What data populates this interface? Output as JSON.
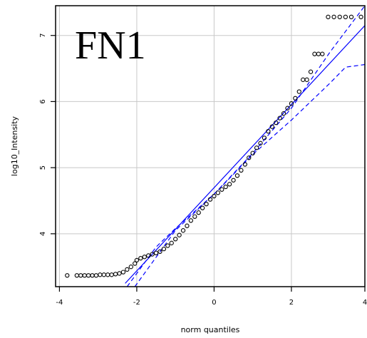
{
  "chart_data": {
    "type": "scatter",
    "title": "FN1",
    "xlabel": "norm quantiles",
    "ylabel": "log10_Intensity",
    "xlim": [
      -4.1,
      3.9
    ],
    "ylim": [
      3.2,
      7.45
    ],
    "xticks": [
      -4,
      -2,
      0,
      2,
      4
    ],
    "yticks": [
      4,
      5,
      6,
      7
    ],
    "xtick_labels": [
      "-4",
      "-2",
      "0",
      "2",
      "4"
    ],
    "ytick_labels": [
      "4",
      "5",
      "6",
      "7"
    ],
    "grid": true,
    "series": [
      {
        "marker": "open-circle",
        "color": "#000000",
        "points": [
          [
            -3.8,
            3.37
          ],
          [
            -3.55,
            3.37
          ],
          [
            -3.45,
            3.37
          ],
          [
            -3.35,
            3.37
          ],
          [
            -3.25,
            3.37
          ],
          [
            -3.15,
            3.37
          ],
          [
            -3.05,
            3.37
          ],
          [
            -2.95,
            3.38
          ],
          [
            -2.85,
            3.38
          ],
          [
            -2.75,
            3.38
          ],
          [
            -2.65,
            3.38
          ],
          [
            -2.55,
            3.39
          ],
          [
            -2.45,
            3.4
          ],
          [
            -2.35,
            3.42
          ],
          [
            -2.25,
            3.46
          ],
          [
            -2.15,
            3.5
          ],
          [
            -2.05,
            3.55
          ],
          [
            -2.0,
            3.6
          ],
          [
            -1.9,
            3.63
          ],
          [
            -1.8,
            3.65
          ],
          [
            -1.7,
            3.67
          ],
          [
            -1.6,
            3.69
          ],
          [
            -1.5,
            3.71
          ],
          [
            -1.4,
            3.73
          ],
          [
            -1.3,
            3.77
          ],
          [
            -1.2,
            3.82
          ],
          [
            -1.1,
            3.86
          ],
          [
            -1.0,
            3.92
          ],
          [
            -0.9,
            3.98
          ],
          [
            -0.8,
            4.05
          ],
          [
            -0.7,
            4.12
          ],
          [
            -0.6,
            4.2
          ],
          [
            -0.5,
            4.26
          ],
          [
            -0.4,
            4.32
          ],
          [
            -0.3,
            4.39
          ],
          [
            -0.2,
            4.45
          ],
          [
            -0.1,
            4.52
          ],
          [
            0.0,
            4.57
          ],
          [
            0.1,
            4.62
          ],
          [
            0.2,
            4.67
          ],
          [
            0.3,
            4.71
          ],
          [
            0.4,
            4.75
          ],
          [
            0.5,
            4.81
          ],
          [
            0.6,
            4.88
          ],
          [
            0.7,
            4.96
          ],
          [
            0.8,
            5.05
          ],
          [
            0.9,
            5.15
          ],
          [
            1.0,
            5.22
          ],
          [
            1.1,
            5.3
          ],
          [
            1.2,
            5.37
          ],
          [
            1.3,
            5.45
          ],
          [
            1.4,
            5.55
          ],
          [
            1.5,
            5.62
          ],
          [
            1.6,
            5.68
          ],
          [
            1.7,
            5.75
          ],
          [
            1.8,
            5.82
          ],
          [
            1.9,
            5.9
          ],
          [
            2.0,
            5.97
          ],
          [
            2.1,
            6.05
          ],
          [
            2.2,
            6.15
          ],
          [
            2.3,
            6.33
          ],
          [
            2.4,
            6.33
          ],
          [
            2.5,
            6.45
          ],
          [
            2.6,
            6.72
          ],
          [
            2.7,
            6.72
          ],
          [
            2.8,
            6.72
          ],
          [
            2.95,
            7.28
          ],
          [
            3.1,
            7.28
          ],
          [
            3.25,
            7.28
          ],
          [
            3.4,
            7.28
          ],
          [
            3.55,
            7.28
          ],
          [
            3.8,
            7.28
          ]
        ]
      }
    ],
    "fit_line": {
      "color": "#0000ff",
      "style": "solid",
      "points": [
        [
          -2.3,
          3.25
        ],
        [
          3.9,
          7.15
        ]
      ]
    },
    "confidence_band": {
      "color": "#0000ff",
      "style": "dashed",
      "upper": [
        [
          -2.25,
          3.2
        ],
        [
          -1.5,
          3.8
        ],
        [
          -1.0,
          4.08
        ],
        [
          0.0,
          4.6
        ],
        [
          1.0,
          5.22
        ],
        [
          2.0,
          5.9
        ],
        [
          3.0,
          6.75
        ],
        [
          3.9,
          7.45
        ]
      ],
      "lower": [
        [
          -2.05,
          3.2
        ],
        [
          -1.0,
          4.05
        ],
        [
          0.0,
          4.6
        ],
        [
          1.0,
          5.2
        ],
        [
          2.0,
          5.72
        ],
        [
          3.0,
          6.28
        ],
        [
          3.4,
          6.52
        ],
        [
          3.9,
          6.56
        ]
      ]
    }
  }
}
